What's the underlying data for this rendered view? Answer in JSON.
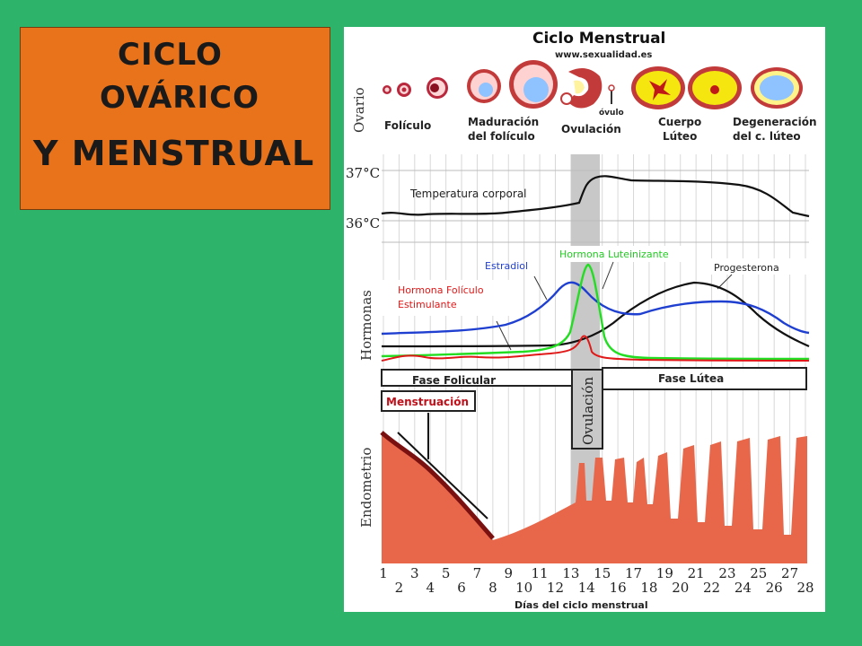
{
  "title": {
    "line1": "CICLO",
    "line2": "OVÁRICO",
    "line3": "Y MENSTRUAL"
  },
  "diagram": {
    "heading": "Ciclo Menstrual",
    "website": "www.sexualidad.es",
    "ovary_label": "Ovario",
    "ovum_label": "óvulo",
    "stages": [
      {
        "line1": "Folículo",
        "line2": ""
      },
      {
        "line1": "Maduración",
        "line2": "del folículo"
      },
      {
        "line1": "Ovulación",
        "line2": ""
      },
      {
        "line1": "Cuerpo",
        "line2": "Lúteo"
      },
      {
        "line1": "Degeneración",
        "line2": "del c. lúteo"
      }
    ],
    "temperature": {
      "label": "Temperatura corporal",
      "tick_high": "37°C",
      "tick_low": "36°C"
    },
    "hormones": {
      "axis_label": "Hormonas",
      "estradiol": "Estradiol",
      "lh": "Hormona Luteinizante",
      "progesterone": "Progesterona",
      "fsh_line1": "Hormona Folículo",
      "fsh_line2": "Estimulante",
      "colors": {
        "estradiol": "#1f3fd0",
        "lh": "#22dd22",
        "progesterone": "#111111",
        "fsh": "#e01818"
      }
    },
    "phases": {
      "follicular": "Fase Folicular",
      "luteal": "Fase Lútea",
      "ovulation": "Ovulación",
      "menstruation": "Menstruación"
    },
    "endometrium_label": "Endometrio",
    "days_label": "Días del ciclo menstrual",
    "days": [
      "1",
      "2",
      "3",
      "4",
      "5",
      "6",
      "7",
      "8",
      "9",
      "10",
      "11",
      "12",
      "13",
      "14",
      "15",
      "16",
      "17",
      "18",
      "19",
      "20",
      "21",
      "22",
      "23",
      "24",
      "25",
      "26",
      "27",
      "28"
    ]
  }
}
